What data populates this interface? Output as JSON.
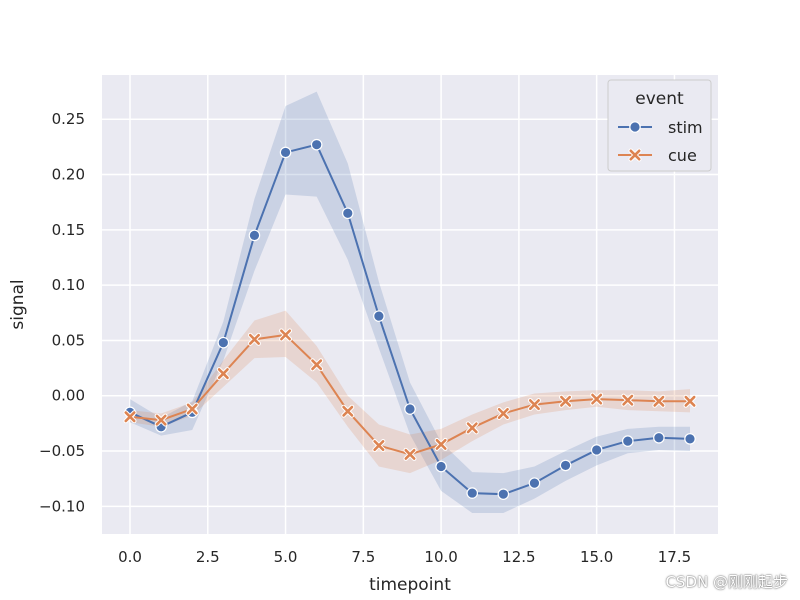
{
  "chart_data": {
    "type": "line",
    "xlabel": "timepoint",
    "ylabel": "signal",
    "xlim": [
      -0.9,
      18.9
    ],
    "ylim": [
      -0.125,
      0.29
    ],
    "xticks": [
      0.0,
      2.5,
      5.0,
      7.5,
      10.0,
      12.5,
      15.0,
      17.5
    ],
    "xtick_labels": [
      "0.0",
      "2.5",
      "5.0",
      "7.5",
      "10.0",
      "12.5",
      "15.0",
      "17.5"
    ],
    "yticks": [
      -0.1,
      -0.05,
      0.0,
      0.05,
      0.1,
      0.15,
      0.2,
      0.25
    ],
    "ytick_labels": [
      "−0.10",
      "−0.05",
      "0.00",
      "0.05",
      "0.10",
      "0.15",
      "0.20",
      "0.25"
    ],
    "grid": true,
    "legend": {
      "title": "event",
      "placement": "top-right"
    },
    "x": [
      0,
      1,
      2,
      3,
      4,
      5,
      6,
      7,
      8,
      9,
      10,
      11,
      12,
      13,
      14,
      15,
      16,
      17,
      18
    ],
    "series": [
      {
        "name": "stim",
        "color": "#4c72b0",
        "marker": "circle",
        "values": [
          -0.015,
          -0.028,
          -0.015,
          0.048,
          0.145,
          0.22,
          0.227,
          0.165,
          0.072,
          -0.012,
          -0.064,
          -0.088,
          -0.089,
          -0.079,
          -0.063,
          -0.049,
          -0.041,
          -0.038,
          -0.039
        ],
        "ci_low": [
          -0.024,
          -0.036,
          -0.031,
          0.032,
          0.113,
          0.182,
          0.18,
          0.123,
          0.043,
          -0.035,
          -0.086,
          -0.106,
          -0.106,
          -0.093,
          -0.077,
          -0.063,
          -0.052,
          -0.049,
          -0.05
        ],
        "ci_high": [
          -0.003,
          -0.02,
          -0.005,
          0.067,
          0.178,
          0.262,
          0.275,
          0.21,
          0.103,
          0.012,
          -0.042,
          -0.069,
          -0.07,
          -0.064,
          -0.05,
          -0.037,
          -0.03,
          -0.028,
          -0.028
        ]
      },
      {
        "name": "cue",
        "color": "#dd8452",
        "marker": "x",
        "values": [
          -0.019,
          -0.022,
          -0.012,
          0.02,
          0.051,
          0.055,
          0.028,
          -0.014,
          -0.045,
          -0.053,
          -0.044,
          -0.029,
          -0.016,
          -0.008,
          -0.005,
          -0.003,
          -0.004,
          -0.005,
          -0.005
        ],
        "ci_low": [
          -0.024,
          -0.028,
          -0.018,
          0.008,
          0.034,
          0.035,
          0.012,
          -0.028,
          -0.064,
          -0.07,
          -0.058,
          -0.041,
          -0.026,
          -0.017,
          -0.013,
          -0.01,
          -0.013,
          -0.014,
          -0.015
        ],
        "ci_high": [
          -0.013,
          -0.016,
          -0.006,
          0.032,
          0.068,
          0.077,
          0.045,
          0.0,
          -0.026,
          -0.035,
          -0.03,
          -0.017,
          -0.006,
          0.002,
          0.004,
          0.005,
          0.005,
          0.004,
          0.006
        ]
      }
    ]
  },
  "watermark": "CSDN @刚刚起步"
}
